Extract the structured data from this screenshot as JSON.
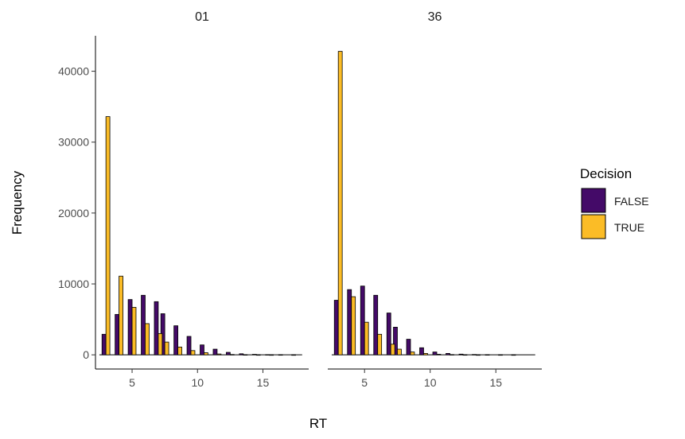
{
  "chart_data": {
    "type": "bar",
    "xlabel": "RT",
    "ylabel": "Frequency",
    "xlim": [
      2.2,
      18.5
    ],
    "ylim": [
      -2000,
      45000
    ],
    "x_ticks": [
      5,
      10,
      15
    ],
    "y_ticks": [
      0,
      10000,
      20000,
      30000,
      40000
    ],
    "bin_width": 1,
    "legend": {
      "title": "Decision",
      "position": "right",
      "entries": [
        {
          "label": "FALSE",
          "color": "#440A68"
        },
        {
          "label": "TRUE",
          "color": "#FBBC26"
        }
      ]
    },
    "facets": [
      {
        "label": "01",
        "x": [
          3,
          4,
          5,
          6,
          7,
          7.5,
          8.5,
          9.5,
          10.5,
          11.5,
          12.5,
          13.5,
          14.5,
          15.5,
          16.5,
          17.5
        ],
        "series": [
          {
            "name": "FALSE",
            "values": [
              2900,
              5700,
              7800,
              8400,
              7500,
              5800,
              4100,
              2600,
              1400,
              800,
              350,
              150,
              70,
              30,
              15,
              5
            ]
          },
          {
            "name": "TRUE",
            "values": [
              33600,
              11100,
              6700,
              4400,
              3000,
              1800,
              1100,
              600,
              300,
              120,
              50,
              20,
              10,
              5,
              0,
              0
            ]
          }
        ]
      },
      {
        "label": "36",
        "x": [
          3,
          4,
          5,
          6,
          7,
          7.5,
          8.5,
          9.5,
          10.5,
          11.5,
          12.5,
          13.5,
          14.5,
          15.5,
          16.5,
          17.5
        ],
        "series": [
          {
            "name": "FALSE",
            "values": [
              7700,
              9200,
              9700,
              8400,
              5900,
              3900,
              2200,
              1000,
              400,
              200,
              100,
              50,
              20,
              10,
              5,
              0
            ]
          },
          {
            "name": "TRUE",
            "values": [
              42800,
              8200,
              4600,
              2900,
              1500,
              800,
              400,
              200,
              80,
              40,
              15,
              5,
              0,
              0,
              0,
              0
            ]
          }
        ]
      }
    ]
  }
}
